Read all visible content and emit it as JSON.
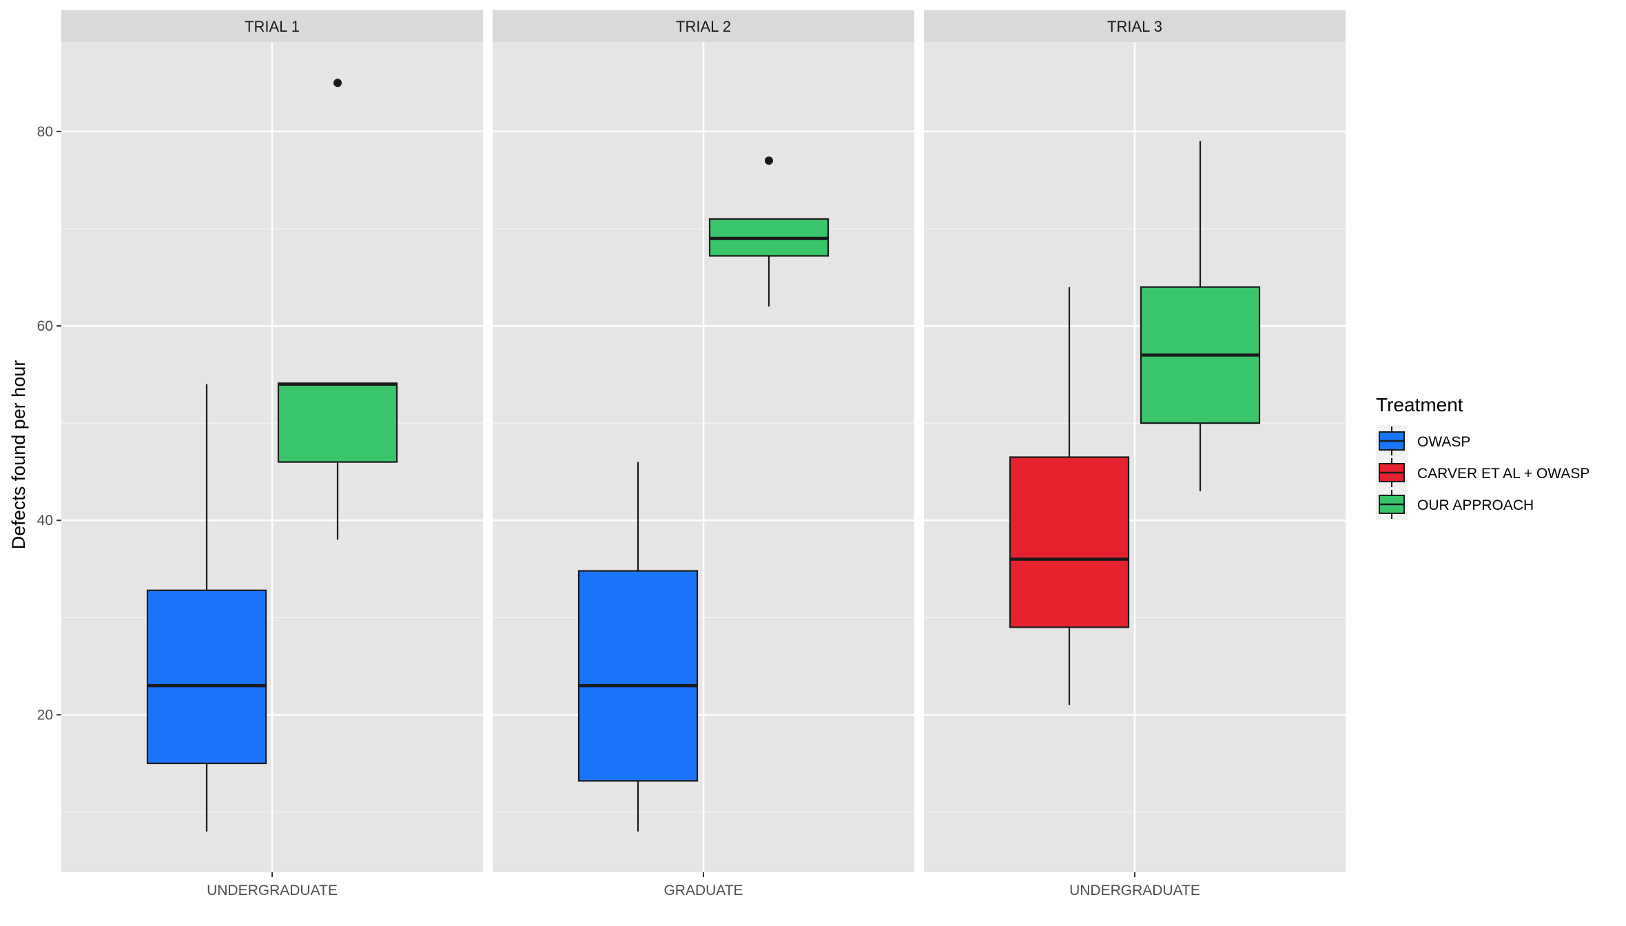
{
  "chart_data": {
    "type": "boxplot",
    "ylabel": "Defects found per hour",
    "ylim": [
      3.8,
      89.2
    ],
    "yticks": [
      20,
      40,
      60,
      80
    ],
    "minor_yticks": [
      10,
      30,
      50,
      70
    ],
    "legend": {
      "title": "Treatment",
      "position": "right",
      "entries": [
        {
          "name": "OWASP",
          "color": "#1b75fc"
        },
        {
          "name": "CARVER ET AL + OWASP",
          "color": "#e6222e"
        },
        {
          "name": "OUR APPROACH",
          "color": "#3bc56b"
        }
      ]
    },
    "panels": [
      {
        "strip": "TRIAL 1",
        "x_label": "UNDERGRADUATE",
        "boxes": [
          {
            "treatment": "OWASP",
            "slot": -1,
            "min": 8,
            "q1": 15,
            "median": 23,
            "q3": 32.8,
            "max": 54,
            "outliers": []
          },
          {
            "treatment": "OUR APPROACH",
            "slot": 1,
            "min": 38,
            "q1": 46,
            "median": 54,
            "q3": 54.1,
            "max": 54.1,
            "outliers": [
              85
            ]
          }
        ]
      },
      {
        "strip": "TRIAL 2",
        "x_label": "GRADUATE",
        "boxes": [
          {
            "treatment": "OWASP",
            "slot": -1,
            "min": 8,
            "q1": 13.2,
            "median": 23,
            "q3": 34.8,
            "max": 46,
            "outliers": []
          },
          {
            "treatment": "OUR APPROACH",
            "slot": 1,
            "min": 62,
            "q1": 67.2,
            "median": 69,
            "q3": 71,
            "max": 71,
            "outliers": [
              77
            ]
          }
        ]
      },
      {
        "strip": "TRIAL 3",
        "x_label": "UNDERGRADUATE",
        "boxes": [
          {
            "treatment": "CARVER ET AL + OWASP",
            "slot": -1,
            "min": 21,
            "q1": 29,
            "median": 36,
            "q3": 46.5,
            "max": 64,
            "outliers": []
          },
          {
            "treatment": "OUR APPROACH",
            "slot": 1,
            "min": 43,
            "q1": 50,
            "median": 57,
            "q3": 64,
            "max": 79,
            "outliers": []
          }
        ]
      }
    ]
  }
}
